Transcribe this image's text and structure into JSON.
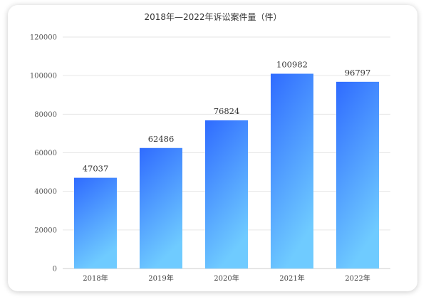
{
  "chart_data": {
    "type": "bar",
    "title": "2018年—2022年诉讼案件量（件）",
    "categories": [
      "2018年",
      "2019年",
      "2020年",
      "2021年",
      "2022年"
    ],
    "values": [
      47037,
      62486,
      76824,
      100982,
      96797
    ],
    "ylim": [
      0,
      120000
    ],
    "yticks": [
      0,
      20000,
      40000,
      60000,
      80000,
      100000,
      120000
    ],
    "grid": true,
    "legend": "none",
    "colors": {
      "bar_top": "#2f6bff",
      "bar_bottom": "#6fcbff",
      "grid": "#e6e6e6"
    }
  }
}
